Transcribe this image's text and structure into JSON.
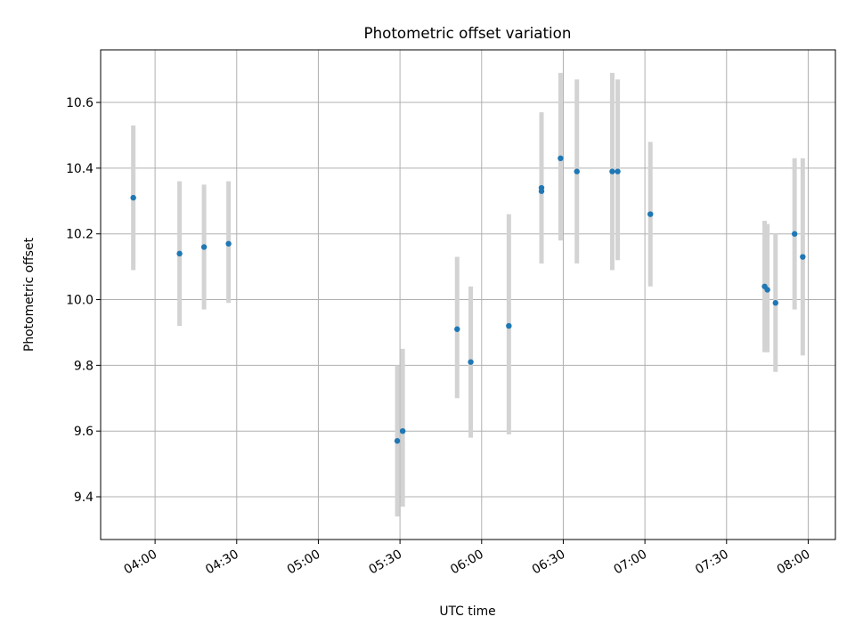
{
  "chart_data": {
    "type": "scatter",
    "title": "Photometric offset variation",
    "xlabel": "UTC time",
    "ylabel": "Photometric offset",
    "xlim": [
      "03:40",
      "08:10"
    ],
    "ylim": [
      9.27,
      10.76
    ],
    "x_ticks": [
      "04:00",
      "04:30",
      "05:00",
      "05:30",
      "06:00",
      "06:30",
      "07:00",
      "07:30",
      "08:00"
    ],
    "y_ticks": [
      "9.4",
      "9.6",
      "9.8",
      "10.0",
      "10.2",
      "10.4",
      "10.6"
    ],
    "grid": true,
    "marker_color": "#1f77b4",
    "errorbar_color": "#d3d3d3",
    "points": [
      {
        "x": "03:52",
        "y": 10.31,
        "yerr": [
          10.09,
          10.53
        ]
      },
      {
        "x": "04:09",
        "y": 10.14,
        "yerr": [
          9.92,
          10.36
        ]
      },
      {
        "x": "04:18",
        "y": 10.16,
        "yerr": [
          9.97,
          10.35
        ]
      },
      {
        "x": "04:27",
        "y": 10.17,
        "yerr": [
          9.99,
          10.36
        ]
      },
      {
        "x": "05:29",
        "y": 9.57,
        "yerr": [
          9.34,
          9.8
        ]
      },
      {
        "x": "05:31",
        "y": 9.6,
        "yerr": [
          9.37,
          9.85
        ]
      },
      {
        "x": "05:51",
        "y": 9.91,
        "yerr": [
          9.7,
          10.13
        ]
      },
      {
        "x": "05:56",
        "y": 9.81,
        "yerr": [
          9.58,
          10.04
        ]
      },
      {
        "x": "06:10",
        "y": 9.92,
        "yerr": [
          9.59,
          10.26
        ]
      },
      {
        "x": "06:22",
        "y": 10.34,
        "yerr": [
          10.11,
          10.57
        ]
      },
      {
        "x": "06:22",
        "y": 10.33,
        "yerr": [
          10.11,
          10.56
        ]
      },
      {
        "x": "06:29",
        "y": 10.43,
        "yerr": [
          10.18,
          10.69
        ]
      },
      {
        "x": "06:35",
        "y": 10.39,
        "yerr": [
          10.11,
          10.67
        ]
      },
      {
        "x": "06:48",
        "y": 10.39,
        "yerr": [
          10.09,
          10.69
        ]
      },
      {
        "x": "06:50",
        "y": 10.39,
        "yerr": [
          10.12,
          10.67
        ]
      },
      {
        "x": "07:02",
        "y": 10.26,
        "yerr": [
          10.04,
          10.48
        ]
      },
      {
        "x": "07:44",
        "y": 10.04,
        "yerr": [
          9.84,
          10.24
        ]
      },
      {
        "x": "07:45",
        "y": 10.03,
        "yerr": [
          9.84,
          10.23
        ]
      },
      {
        "x": "07:48",
        "y": 9.99,
        "yerr": [
          9.78,
          10.2
        ]
      },
      {
        "x": "07:55",
        "y": 10.2,
        "yerr": [
          9.97,
          10.43
        ]
      },
      {
        "x": "07:58",
        "y": 10.13,
        "yerr": [
          9.83,
          10.43
        ]
      }
    ]
  }
}
